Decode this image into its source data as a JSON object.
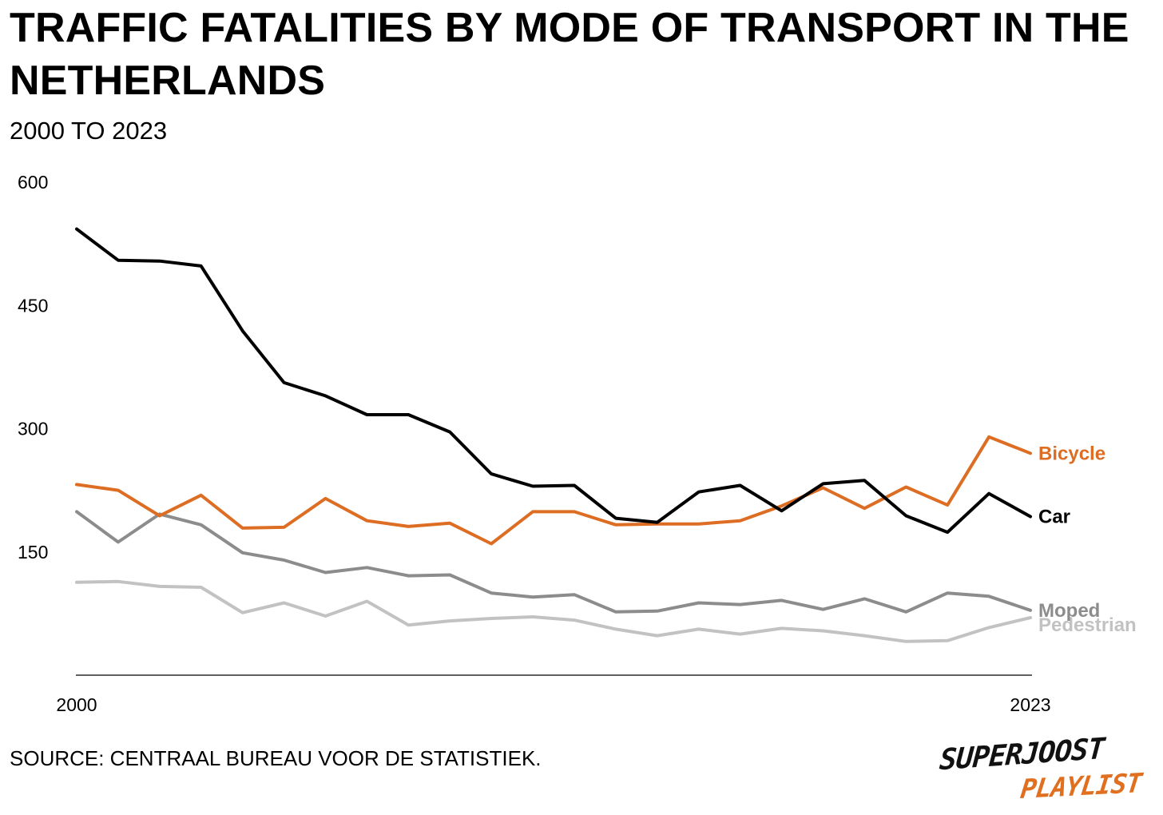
{
  "title": "TRAFFIC FATALITIES BY MODE OF TRANSPORT IN THE NETHERLANDS",
  "subtitle": "2000 TO 2023",
  "source": "SOURCE: CENTRAAL BUREAU VOOR DE STATISTIEK.",
  "logo": {
    "line1": "SUPERJOOST",
    "line2": "PLAYLIST"
  },
  "chart_data": {
    "type": "line",
    "title": "TRAFFIC FATALITIES BY MODE OF TRANSPORT IN THE NETHERLANDS",
    "subtitle": "2000 TO 2023",
    "xlabel": "",
    "ylabel": "",
    "x": [
      2000,
      2001,
      2002,
      2003,
      2004,
      2005,
      2006,
      2007,
      2008,
      2009,
      2010,
      2011,
      2012,
      2013,
      2014,
      2015,
      2016,
      2017,
      2018,
      2019,
      2020,
      2021,
      2022,
      2023
    ],
    "x_tick_labels": [
      "2000",
      "2023"
    ],
    "y_ticks": [
      150,
      300,
      450,
      600
    ],
    "y_tick_labels": [
      "150",
      "300",
      "450",
      "600"
    ],
    "ylim": [
      0,
      600
    ],
    "grid": false,
    "series": [
      {
        "name": "Car",
        "color": "#000000",
        "values": [
          543,
          505,
          504,
          498,
          419,
          356,
          340,
          317,
          317,
          296,
          245,
          230,
          231,
          191,
          186,
          223,
          231,
          200,
          233,
          237,
          194,
          174,
          221,
          193
        ]
      },
      {
        "name": "Bicycle",
        "color": "#dd6d22",
        "values": [
          232,
          225,
          194,
          219,
          179,
          180,
          215,
          188,
          181,
          185,
          160,
          199,
          199,
          183,
          184,
          184,
          188,
          206,
          228,
          203,
          229,
          207,
          290,
          270
        ]
      },
      {
        "name": "Moped",
        "color": "#8c8c8c",
        "values": [
          199,
          162,
          196,
          183,
          149,
          140,
          125,
          131,
          121,
          122,
          100,
          95,
          98,
          77,
          78,
          88,
          86,
          91,
          80,
          93,
          77,
          100,
          96,
          79
        ]
      },
      {
        "name": "Pedestrian",
        "color": "#c2c2c2",
        "values": [
          113,
          114,
          108,
          107,
          76,
          88,
          72,
          90,
          61,
          66,
          69,
          71,
          67,
          56,
          48,
          56,
          50,
          57,
          54,
          48,
          41,
          42,
          58,
          70
        ]
      }
    ]
  }
}
